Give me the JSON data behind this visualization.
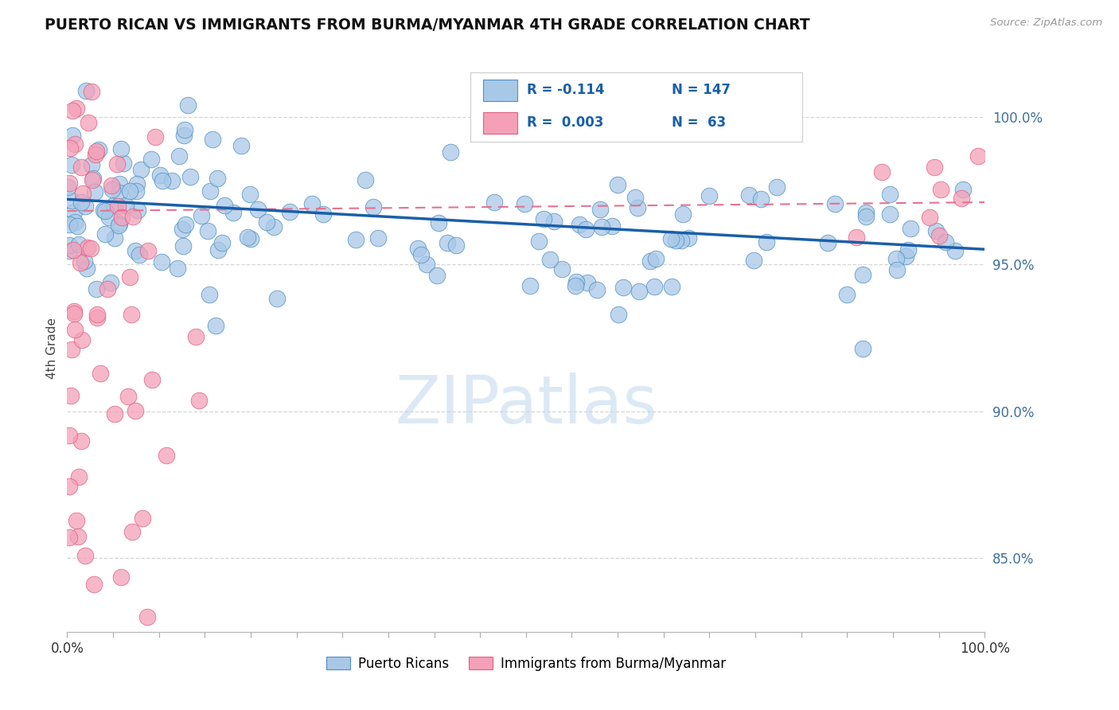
{
  "title": "PUERTO RICAN VS IMMIGRANTS FROM BURMA/MYANMAR 4TH GRADE CORRELATION CHART",
  "source": "Source: ZipAtlas.com",
  "ylabel": "4th Grade",
  "watermark": "ZIPatlas",
  "xmin": 0.0,
  "xmax": 100.0,
  "ymin": 82.5,
  "ymax": 101.8,
  "yticks": [
    85.0,
    90.0,
    95.0,
    100.0
  ],
  "blue_R": -0.114,
  "blue_N": 147,
  "pink_R": 0.003,
  "pink_N": 63,
  "blue_fill_color": "#a8c8e8",
  "pink_fill_color": "#f4a0b8",
  "blue_edge_color": "#5090c0",
  "pink_edge_color": "#e06080",
  "blue_line_color": "#1a5fa8",
  "pink_line_color": "#e87090",
  "tick_color": "#4070a0",
  "blue_line_start_y": 97.2,
  "blue_line_end_y": 95.5,
  "pink_line_y": 96.8
}
